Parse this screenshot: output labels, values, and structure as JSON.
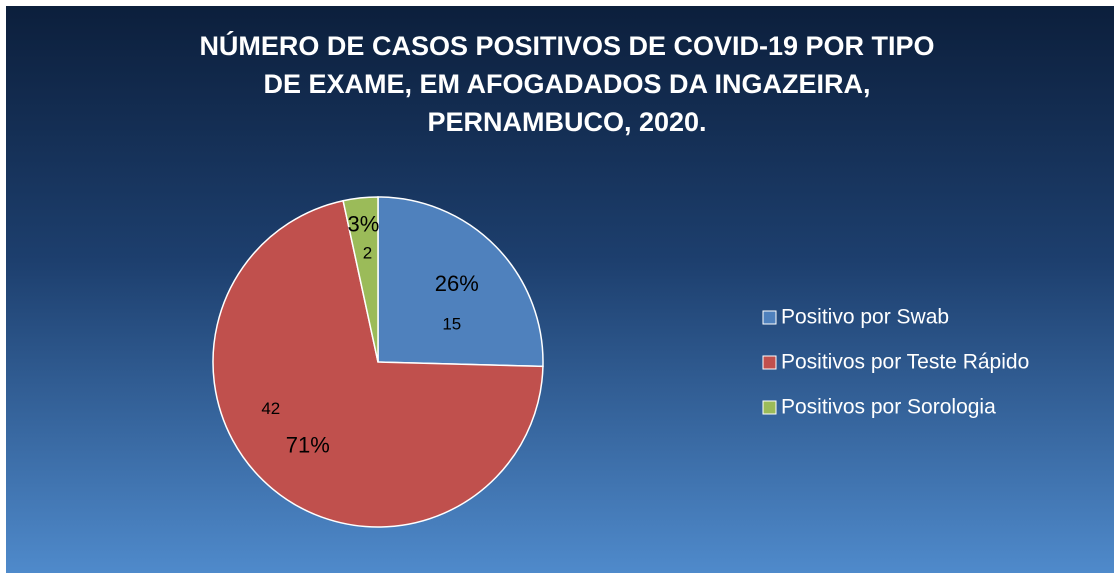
{
  "chart_data": {
    "type": "pie",
    "title": [
      "NÚMERO DE CASOS POSITIVOS DE COVID-19 POR TIPO",
      "DE EXAME, EM AFOGADADOS DA INGAZEIRA,",
      "PERNAMBUCO, 2020."
    ],
    "categories": [
      "Positivo por Swab",
      "Positivos por Teste Rápido",
      "Positivos por Sorologia"
    ],
    "values": [
      15,
      42,
      2
    ],
    "percentage_labels": [
      "26%",
      "71%",
      "3%"
    ],
    "colors": [
      "#4f81bd",
      "#c0504d",
      "#9bbb59"
    ],
    "legend": "right"
  }
}
